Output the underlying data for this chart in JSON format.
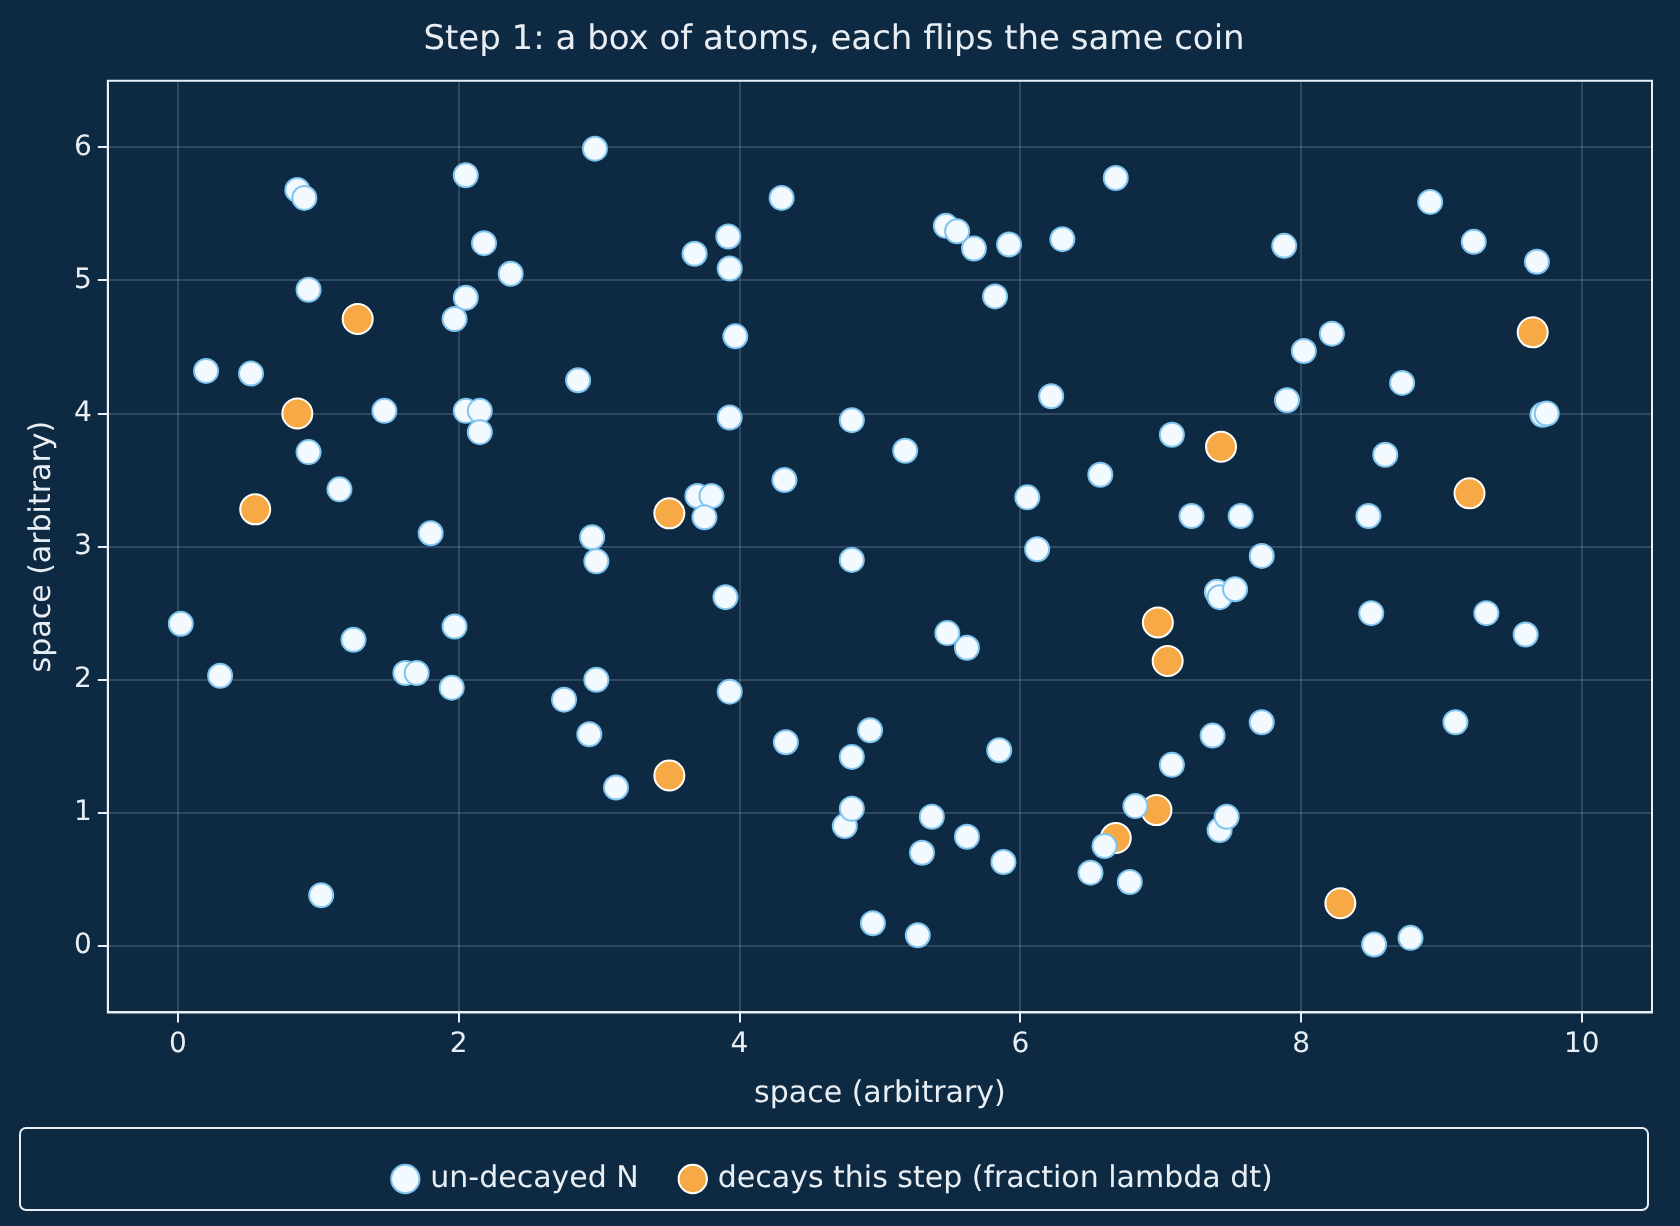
{
  "chart_data": {
    "type": "scatter",
    "title": "Step 1: a box of atoms, each flips the same coin",
    "xlabel": "space (arbitrary)",
    "ylabel": "space (arbitrary)",
    "xlim": [
      -0.5,
      10.5
    ],
    "ylim": [
      -0.5,
      6.5
    ],
    "xticks": [
      0,
      2,
      4,
      6,
      8,
      10
    ],
    "yticks": [
      0,
      1,
      2,
      3,
      4,
      5,
      6
    ],
    "grid": true,
    "legend": "bottom",
    "marker": "circle",
    "series": [
      {
        "name": "un-decayed N",
        "color": "#f2f9ff",
        "x": [
          0.85,
          0.9,
          0.93,
          0.2,
          0.52,
          0.93,
          1.15,
          1.47,
          1.97,
          2.05,
          2.05,
          2.18,
          2.37,
          2.05,
          2.15,
          2.15,
          1.8,
          0.02,
          0.3,
          1.25,
          1.62,
          1.7,
          1.95,
          1.97,
          1.02,
          2.97,
          2.85,
          2.95,
          2.98,
          2.75,
          2.93,
          2.98,
          3.12,
          3.68,
          3.92,
          3.93,
          3.97,
          3.93,
          3.7,
          3.8,
          3.75,
          3.9,
          3.93,
          4.3,
          4.32,
          4.33,
          4.8,
          4.8,
          4.75,
          4.8,
          4.8,
          4.93,
          4.95,
          5.18,
          5.3,
          5.27,
          5.37,
          5.47,
          5.55,
          5.67,
          5.82,
          5.92,
          5.48,
          5.62,
          5.62,
          5.85,
          5.88,
          6.05,
          6.12,
          6.22,
          6.3,
          6.57,
          6.68,
          6.5,
          6.6,
          6.78,
          6.82,
          7.08,
          7.08,
          7.22,
          7.37,
          7.4,
          7.42,
          7.42,
          7.47,
          7.53,
          7.57,
          7.72,
          7.72,
          7.88,
          7.9,
          8.02,
          8.22,
          8.48,
          8.5,
          8.52,
          8.6,
          8.72,
          8.78,
          8.92,
          9.1,
          9.23,
          9.32,
          9.6,
          9.68,
          9.72,
          9.75
        ],
        "values": [
          5.68,
          5.62,
          4.93,
          4.32,
          4.3,
          3.71,
          3.43,
          4.02,
          4.71,
          4.87,
          5.79,
          5.28,
          5.05,
          4.02,
          4.02,
          3.86,
          3.1,
          2.42,
          2.03,
          2.3,
          2.05,
          2.05,
          1.94,
          2.4,
          0.38,
          5.99,
          4.25,
          3.07,
          2.89,
          1.85,
          1.59,
          2.0,
          1.19,
          5.2,
          5.33,
          5.09,
          4.58,
          3.97,
          3.38,
          3.38,
          3.22,
          2.62,
          1.91,
          5.62,
          3.5,
          1.53,
          3.95,
          2.9,
          0.9,
          1.03,
          1.42,
          1.62,
          0.17,
          3.72,
          0.7,
          0.08,
          0.97,
          5.41,
          5.37,
          5.24,
          4.88,
          5.27,
          2.35,
          2.24,
          0.82,
          1.47,
          0.63,
          3.37,
          2.98,
          4.13,
          5.31,
          3.54,
          5.77,
          0.55,
          0.75,
          0.48,
          1.05,
          3.84,
          1.36,
          3.23,
          1.58,
          2.66,
          2.62,
          0.87,
          0.97,
          2.68,
          3.23,
          2.93,
          1.68,
          5.26,
          4.1,
          4.47,
          4.6,
          3.23,
          2.5,
          0.01,
          3.69,
          4.23,
          0.06,
          5.59,
          1.68,
          5.29,
          2.5,
          2.34,
          5.14,
          3.99,
          4.0
        ]
      },
      {
        "name": "decays this step (fraction lambda dt)",
        "color": "#f6a944",
        "x": [
          0.55,
          0.85,
          1.28,
          3.5,
          3.5,
          6.68,
          6.97,
          6.98,
          7.05,
          7.43,
          8.28,
          9.2,
          9.65
        ],
        "values": [
          3.28,
          4.0,
          4.71,
          3.25,
          1.28,
          0.81,
          1.02,
          2.43,
          2.14,
          3.75,
          0.32,
          3.4,
          4.61
        ]
      }
    ]
  }
}
